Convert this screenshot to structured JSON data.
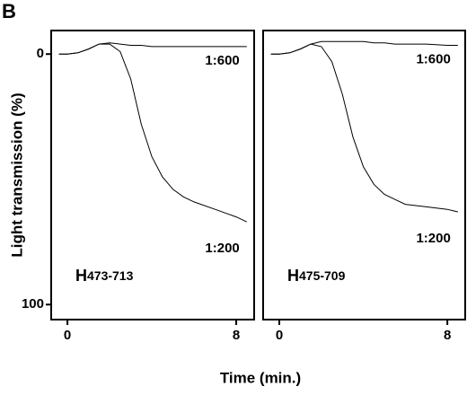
{
  "panel": "B",
  "ylabel": "Light transmission (%)",
  "xlabel": "Time (min.)",
  "chart_data": [
    {
      "type": "line",
      "annotation": {
        "letter": "H",
        "range": "473-713"
      },
      "x": [
        -0.4,
        0,
        0.5,
        1,
        1.5,
        2,
        2.5,
        3,
        3.5,
        4,
        4.5,
        5,
        5.5,
        6,
        7,
        8,
        8.5
      ],
      "series": [
        {
          "name": "1:600",
          "color": "#000000",
          "values": [
            0,
            0,
            -0.5,
            -2,
            -4,
            -4.5,
            -4,
            -3.5,
            -3.5,
            -3,
            -3,
            -3,
            -3,
            -3,
            -3,
            -3,
            -3
          ]
        },
        {
          "name": "1:200",
          "color": "#000000",
          "values": [
            0,
            0,
            -0.5,
            -2,
            -4,
            -4,
            -1,
            10,
            28,
            41,
            49,
            54,
            57,
            59,
            62,
            65,
            67
          ]
        }
      ],
      "xlim": [
        -0.77,
        8.85
      ],
      "xticks": [
        0,
        8
      ],
      "ylim": [
        -9.4,
        106
      ],
      "yticks": [
        0,
        100
      ],
      "y_inverted": true
    },
    {
      "type": "line",
      "annotation": {
        "letter": "H",
        "range": "475-709"
      },
      "x": [
        -0.4,
        0,
        0.5,
        1,
        1.5,
        2,
        2.5,
        3,
        3.5,
        4,
        4.5,
        5,
        5.5,
        6,
        7,
        8,
        8.5
      ],
      "series": [
        {
          "name": "1:600",
          "color": "#000000",
          "values": [
            0,
            0,
            -0.5,
            -2,
            -4,
            -5,
            -5,
            -5,
            -5,
            -5,
            -4.5,
            -4.5,
            -4,
            -4,
            -4,
            -3.5,
            -3.5
          ]
        },
        {
          "name": "1:200",
          "color": "#000000",
          "values": [
            0,
            0,
            -0.5,
            -2,
            -4,
            -3,
            3,
            16,
            33,
            45,
            52,
            56,
            58,
            60,
            61,
            62,
            63
          ]
        }
      ],
      "xlim": [
        -0.77,
        8.85
      ],
      "xticks": [
        0,
        8
      ],
      "ylim": [
        -9.4,
        106
      ],
      "y_inverted": true
    }
  ]
}
